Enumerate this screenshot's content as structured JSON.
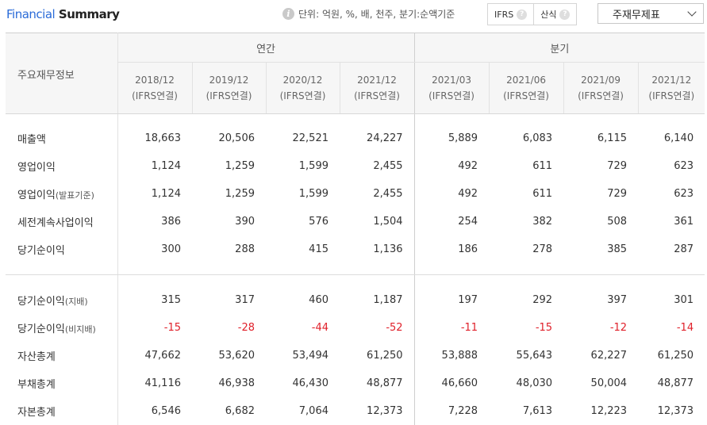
{
  "header": {
    "title_part1": "Financial",
    "title_part2": "Summary",
    "unit_text": "단위: 억원, %, 배, 천주, 분기:순액기준",
    "toggle_ifrs": "IFRS",
    "toggle_sansik": "산식",
    "select_value": "주재무제표"
  },
  "table": {
    "label_header": "주요재무정보",
    "group_annual": "연간",
    "group_quarter": "분기",
    "columns": [
      {
        "period": "2018/12",
        "basis": "(IFRS연결)"
      },
      {
        "period": "2019/12",
        "basis": "(IFRS연결)"
      },
      {
        "period": "2020/12",
        "basis": "(IFRS연결)"
      },
      {
        "period": "2021/12",
        "basis": "(IFRS연결)"
      },
      {
        "period": "2021/03",
        "basis": "(IFRS연결)"
      },
      {
        "period": "2021/06",
        "basis": "(IFRS연결)"
      },
      {
        "period": "2021/09",
        "basis": "(IFRS연결)"
      },
      {
        "period": "2021/12",
        "basis": "(IFRS연결)"
      }
    ],
    "section1": [
      {
        "label": "매출액",
        "sub": "",
        "values": [
          "18,663",
          "20,506",
          "22,521",
          "24,227",
          "5,889",
          "6,083",
          "6,115",
          "6,140"
        ]
      },
      {
        "label": "영업이익",
        "sub": "",
        "values": [
          "1,124",
          "1,259",
          "1,599",
          "2,455",
          "492",
          "611",
          "729",
          "623"
        ]
      },
      {
        "label": "영업이익",
        "sub": "(발표기준)",
        "values": [
          "1,124",
          "1,259",
          "1,599",
          "2,455",
          "492",
          "611",
          "729",
          "623"
        ]
      },
      {
        "label": "세전계속사업이익",
        "sub": "",
        "values": [
          "386",
          "390",
          "576",
          "1,504",
          "254",
          "382",
          "508",
          "361"
        ]
      },
      {
        "label": "당기순이익",
        "sub": "",
        "values": [
          "300",
          "288",
          "415",
          "1,136",
          "186",
          "278",
          "385",
          "287"
        ]
      }
    ],
    "section2": [
      {
        "label": "당기순이익",
        "sub": "(지배)",
        "values": [
          "315",
          "317",
          "460",
          "1,187",
          "197",
          "292",
          "397",
          "301"
        ],
        "negative": false
      },
      {
        "label": "당기순이익",
        "sub": "(비지배)",
        "values": [
          "-15",
          "-28",
          "-44",
          "-52",
          "-11",
          "-15",
          "-12",
          "-14"
        ],
        "negative": true
      },
      {
        "label": "자산총계",
        "sub": "",
        "values": [
          "47,662",
          "53,620",
          "53,494",
          "61,250",
          "53,888",
          "55,643",
          "62,227",
          "61,250"
        ],
        "negative": false
      },
      {
        "label": "부채총계",
        "sub": "",
        "values": [
          "41,116",
          "46,938",
          "46,430",
          "48,877",
          "46,660",
          "48,030",
          "50,004",
          "48,877"
        ],
        "negative": false
      },
      {
        "label": "자본총계",
        "sub": "",
        "values": [
          "6,546",
          "6,682",
          "7,064",
          "12,373",
          "7,228",
          "7,613",
          "12,223",
          "12,373"
        ],
        "negative": false
      }
    ],
    "negative_color": "#e0202a"
  }
}
